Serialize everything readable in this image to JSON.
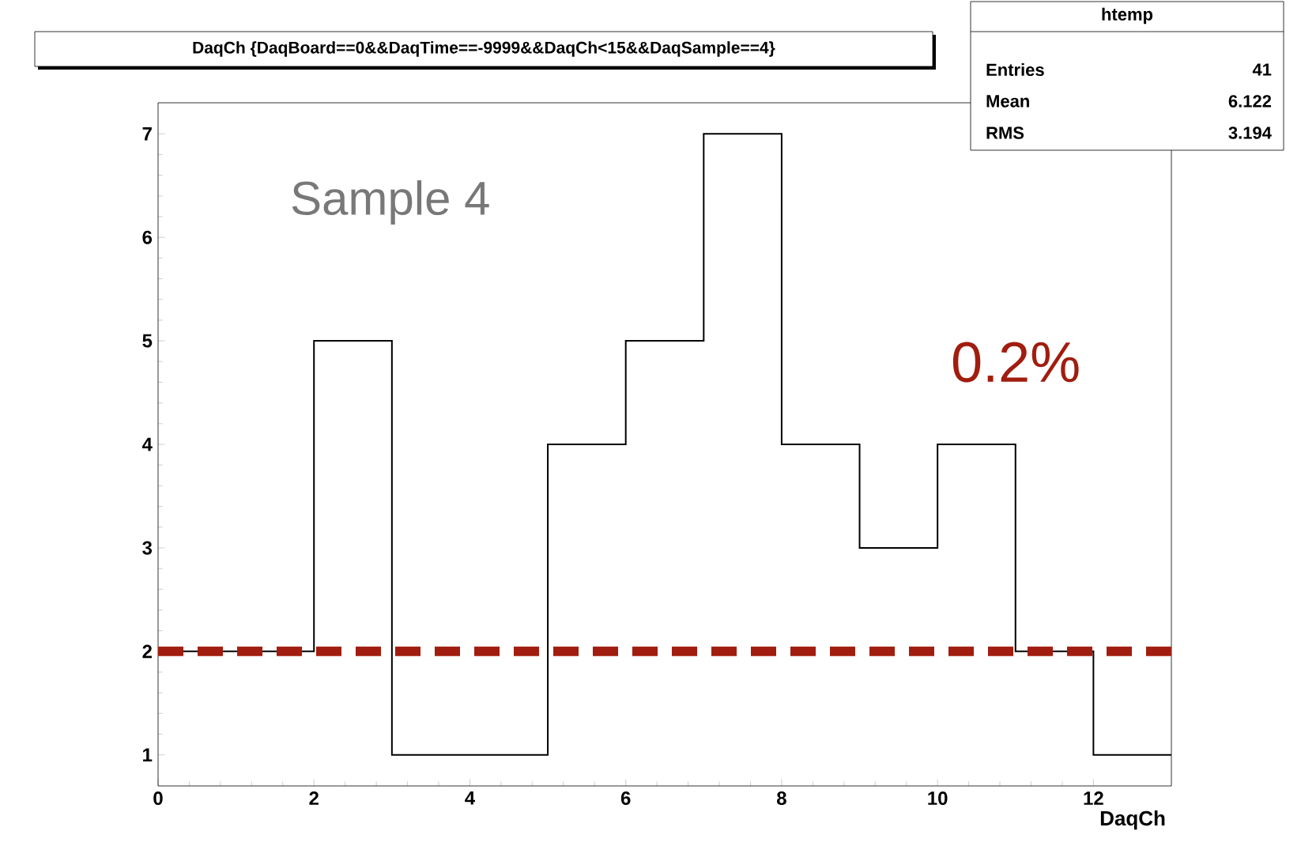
{
  "chart_data": {
    "type": "histogram",
    "title": "DaqCh {DaqBoard==0&&DaqTime==-9999&&DaqCh<15&&DaqSample==4}",
    "xlabel": "DaqCh",
    "bins": [
      0,
      1,
      2,
      3,
      4,
      5,
      6,
      7,
      8,
      9,
      10,
      11,
      12,
      13
    ],
    "values": [
      2,
      2,
      5,
      1,
      1,
      4,
      5,
      7,
      4,
      3,
      4,
      2,
      1
    ],
    "color": "#000000",
    "xlim": [
      0,
      13
    ],
    "ylim": [
      0.7,
      7.3
    ],
    "xticks": [
      0,
      2,
      4,
      6,
      8,
      10,
      12
    ],
    "yticks": [
      1,
      2,
      3,
      4,
      5,
      6,
      7
    ],
    "ref_lines": [
      {
        "axis": "y",
        "value": 2,
        "color": "#a11d0f",
        "line_style": "dashed"
      }
    ],
    "annotations": [
      "Sample 4",
      "0.2%",
      "htemp",
      "Entries",
      "41",
      "Mean",
      "6.122",
      "RMS",
      "3.194"
    ]
  }
}
